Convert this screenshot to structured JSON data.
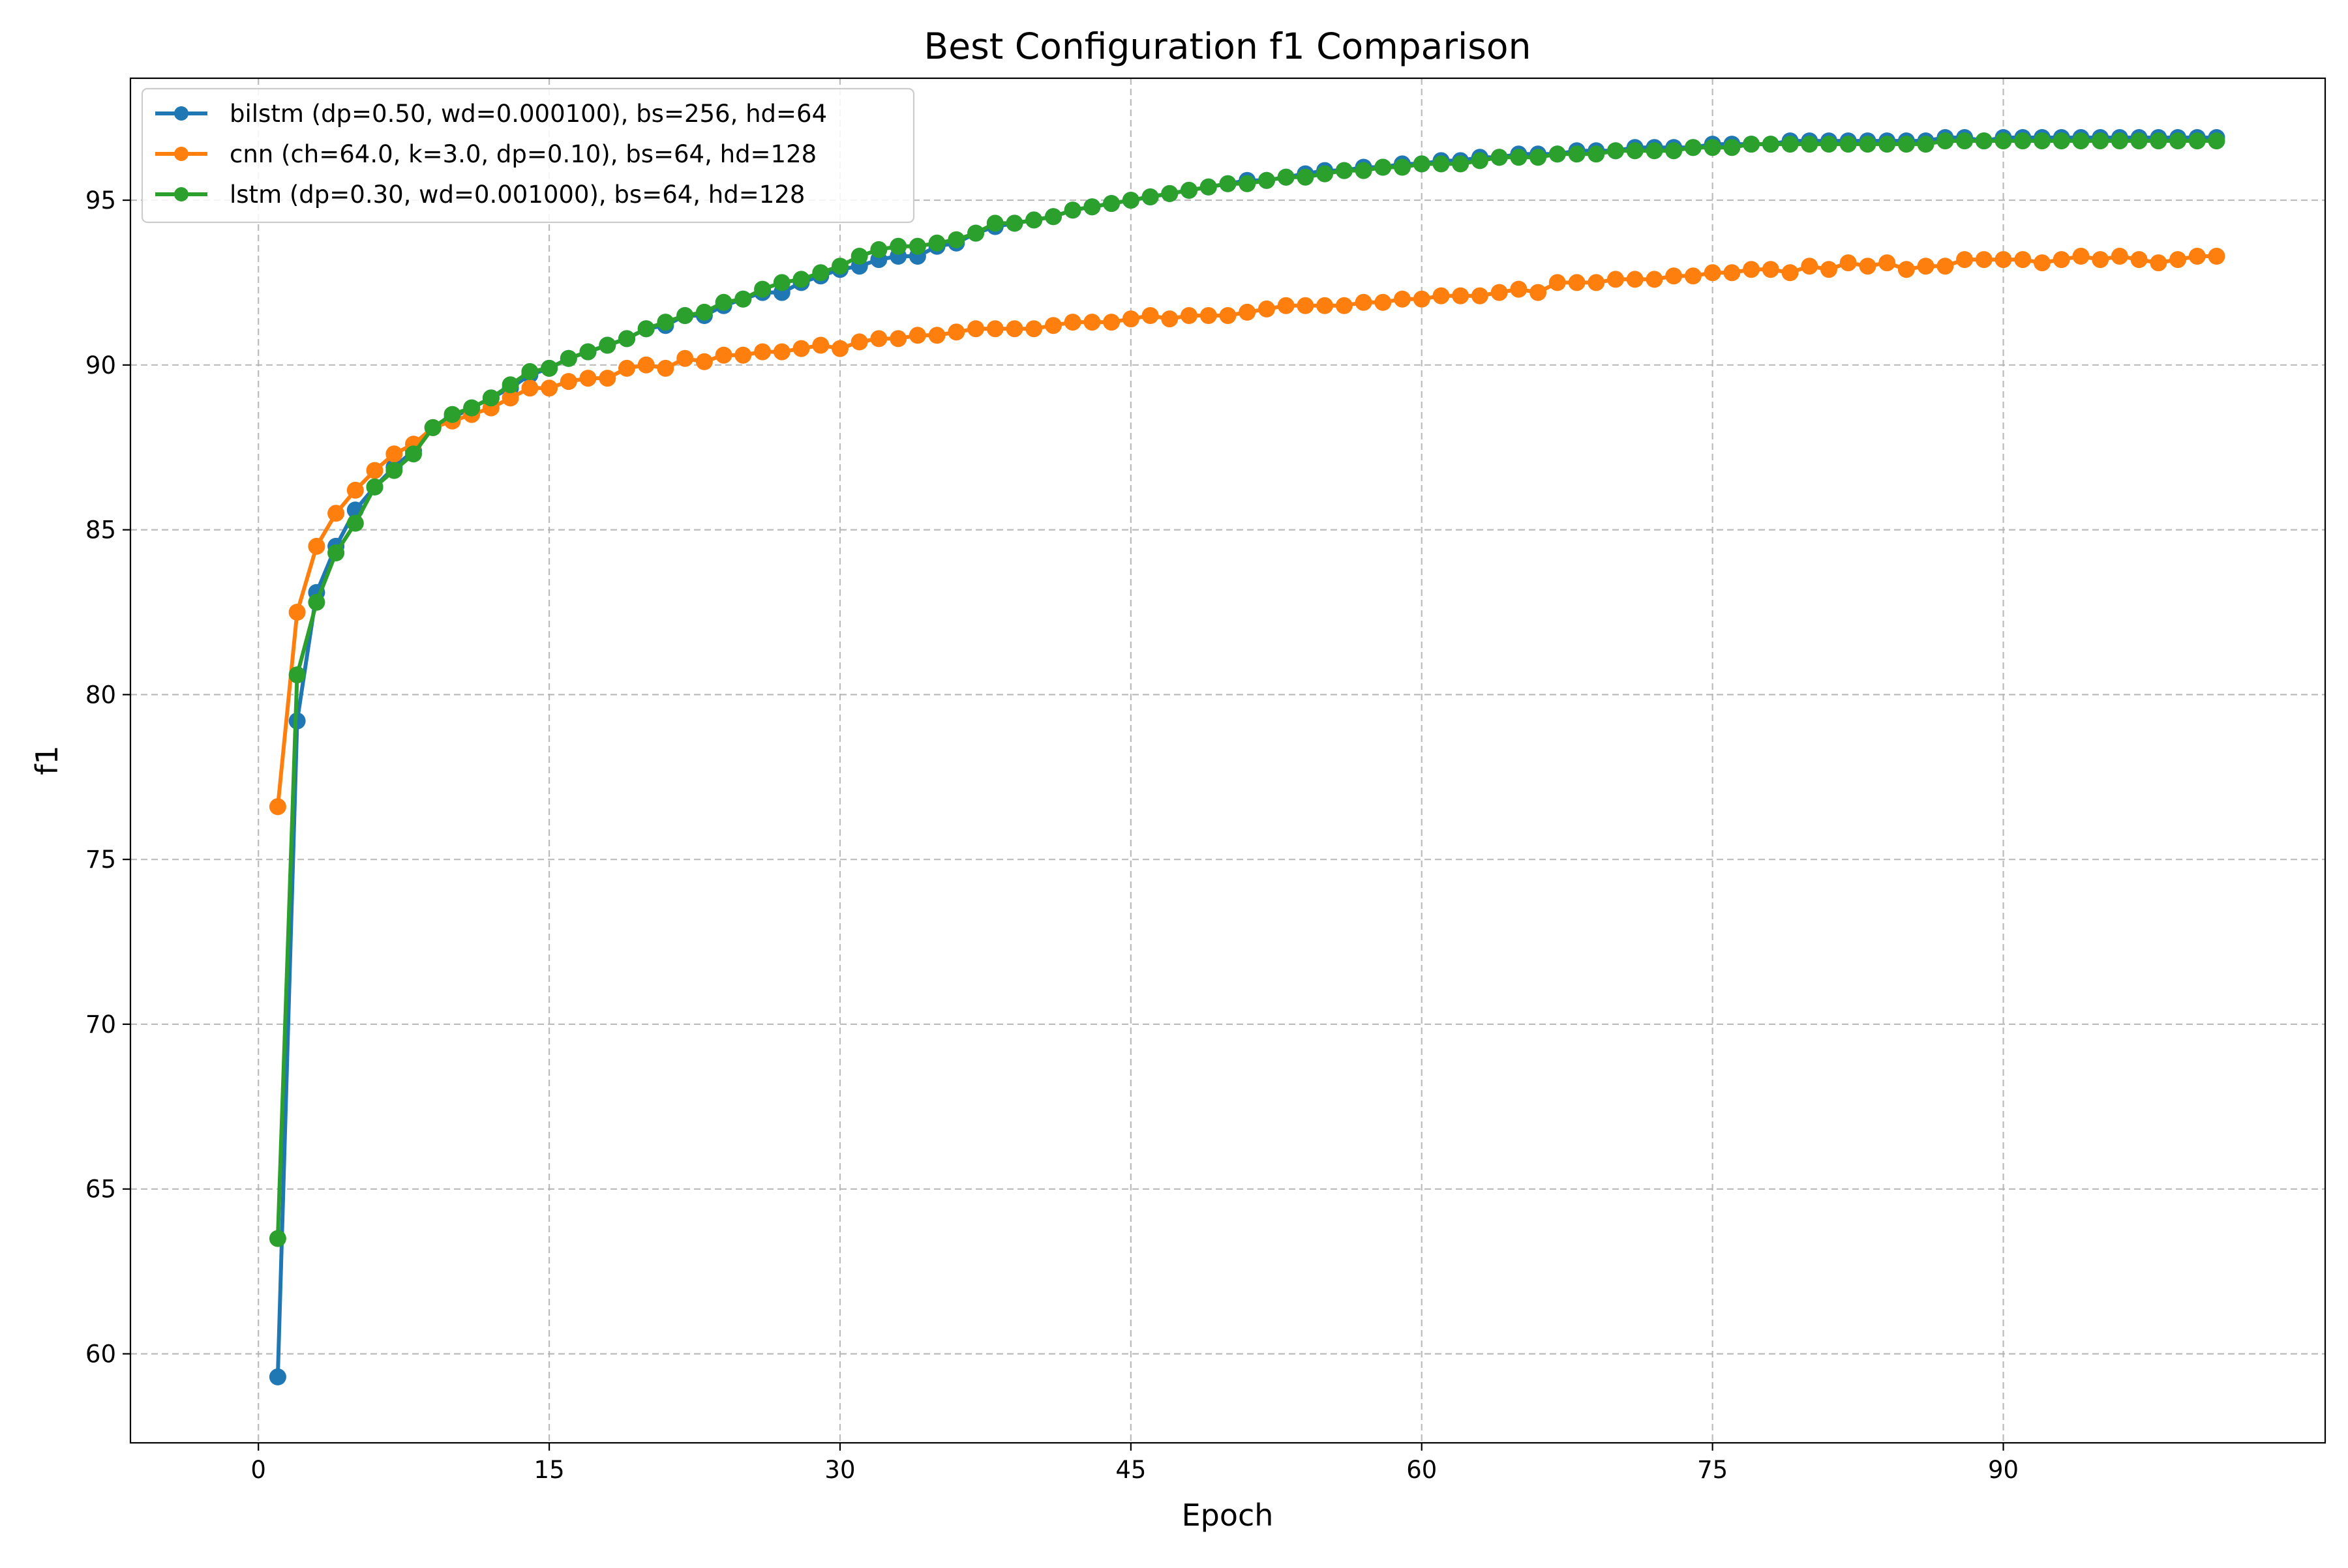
{
  "chart_data": {
    "type": "line",
    "title": "Best Configuration f1 Comparison",
    "xlabel": "Epoch",
    "ylabel": "f1",
    "xlim": [
      -6.6,
      106.6
    ],
    "ylim": [
      57.3,
      98.7
    ],
    "xticks": [
      0,
      15,
      30,
      45,
      60,
      75,
      90
    ],
    "yticks": [
      60,
      65,
      70,
      75,
      80,
      85,
      90,
      95
    ],
    "grid": true,
    "legend_position": "top-left",
    "marker": "circle",
    "series": [
      {
        "name": "bilstm (dp=0.50, wd=0.000100), bs=256, hd=64",
        "color": "#1f77b4",
        "x_start": 1,
        "values": [
          59.3,
          79.2,
          83.1,
          84.5,
          85.6,
          86.3,
          86.9,
          87.4,
          88.1,
          88.4,
          88.7,
          89.0,
          89.3,
          89.7,
          89.9,
          90.2,
          90.4,
          90.6,
          90.8,
          91.1,
          91.2,
          91.5,
          91.5,
          91.8,
          92.0,
          92.2,
          92.2,
          92.5,
          92.7,
          92.9,
          93.0,
          93.2,
          93.3,
          93.3,
          93.6,
          93.7,
          94.0,
          94.2,
          94.3,
          94.4,
          94.5,
          94.7,
          94.8,
          94.9,
          95.0,
          95.1,
          95.2,
          95.3,
          95.4,
          95.5,
          95.6,
          95.6,
          95.7,
          95.8,
          95.9,
          95.9,
          96.0,
          96.0,
          96.1,
          96.1,
          96.2,
          96.2,
          96.3,
          96.3,
          96.4,
          96.4,
          96.4,
          96.5,
          96.5,
          96.5,
          96.6,
          96.6,
          96.6,
          96.6,
          96.7,
          96.7,
          96.7,
          96.7,
          96.8,
          96.8,
          96.8,
          96.8,
          96.8,
          96.8,
          96.8,
          96.8,
          96.9,
          96.9,
          96.8,
          96.9,
          96.9,
          96.9,
          96.9,
          96.9,
          96.9,
          96.9,
          96.9,
          96.9,
          96.9,
          96.9,
          96.9
        ]
      },
      {
        "name": "cnn (ch=64.0, k=3.0, dp=0.10), bs=64, hd=128",
        "color": "#ff7f0e",
        "x_start": 1,
        "values": [
          76.6,
          82.5,
          84.5,
          85.5,
          86.2,
          86.8,
          87.3,
          87.6,
          88.1,
          88.3,
          88.5,
          88.7,
          89.0,
          89.3,
          89.3,
          89.5,
          89.6,
          89.6,
          89.9,
          90.0,
          89.9,
          90.2,
          90.1,
          90.3,
          90.3,
          90.4,
          90.4,
          90.5,
          90.6,
          90.5,
          90.7,
          90.8,
          90.8,
          90.9,
          90.9,
          91.0,
          91.1,
          91.1,
          91.1,
          91.1,
          91.2,
          91.3,
          91.3,
          91.3,
          91.4,
          91.5,
          91.4,
          91.5,
          91.5,
          91.5,
          91.6,
          91.7,
          91.8,
          91.8,
          91.8,
          91.8,
          91.9,
          91.9,
          92.0,
          92.0,
          92.1,
          92.1,
          92.1,
          92.2,
          92.3,
          92.2,
          92.5,
          92.5,
          92.5,
          92.6,
          92.6,
          92.6,
          92.7,
          92.7,
          92.8,
          92.8,
          92.9,
          92.9,
          92.8,
          93.0,
          92.9,
          93.1,
          93.0,
          93.1,
          92.9,
          93.0,
          93.0,
          93.2,
          93.2,
          93.2,
          93.2,
          93.1,
          93.2,
          93.3,
          93.2,
          93.3,
          93.2,
          93.1,
          93.2,
          93.3,
          93.3
        ]
      },
      {
        "name": "lstm (dp=0.30, wd=0.001000), bs=64, hd=128",
        "color": "#2ca02c",
        "x_start": 1,
        "values": [
          63.5,
          80.6,
          82.8,
          84.3,
          85.2,
          86.3,
          86.8,
          87.3,
          88.1,
          88.5,
          88.7,
          89.0,
          89.4,
          89.8,
          89.9,
          90.2,
          90.4,
          90.6,
          90.8,
          91.1,
          91.3,
          91.5,
          91.6,
          91.9,
          92.0,
          92.3,
          92.5,
          92.6,
          92.8,
          93.0,
          93.3,
          93.5,
          93.6,
          93.6,
          93.7,
          93.8,
          94.0,
          94.3,
          94.3,
          94.4,
          94.5,
          94.7,
          94.8,
          94.9,
          95.0,
          95.1,
          95.2,
          95.3,
          95.4,
          95.5,
          95.5,
          95.6,
          95.7,
          95.7,
          95.8,
          95.9,
          95.9,
          96.0,
          96.0,
          96.1,
          96.1,
          96.1,
          96.2,
          96.3,
          96.3,
          96.3,
          96.4,
          96.4,
          96.4,
          96.5,
          96.5,
          96.5,
          96.5,
          96.6,
          96.6,
          96.6,
          96.7,
          96.7,
          96.7,
          96.7,
          96.7,
          96.7,
          96.7,
          96.7,
          96.7,
          96.7,
          96.8,
          96.8,
          96.8,
          96.8,
          96.8,
          96.8,
          96.8,
          96.8,
          96.8,
          96.8,
          96.8,
          96.8,
          96.8,
          96.8,
          96.8
        ]
      }
    ]
  }
}
